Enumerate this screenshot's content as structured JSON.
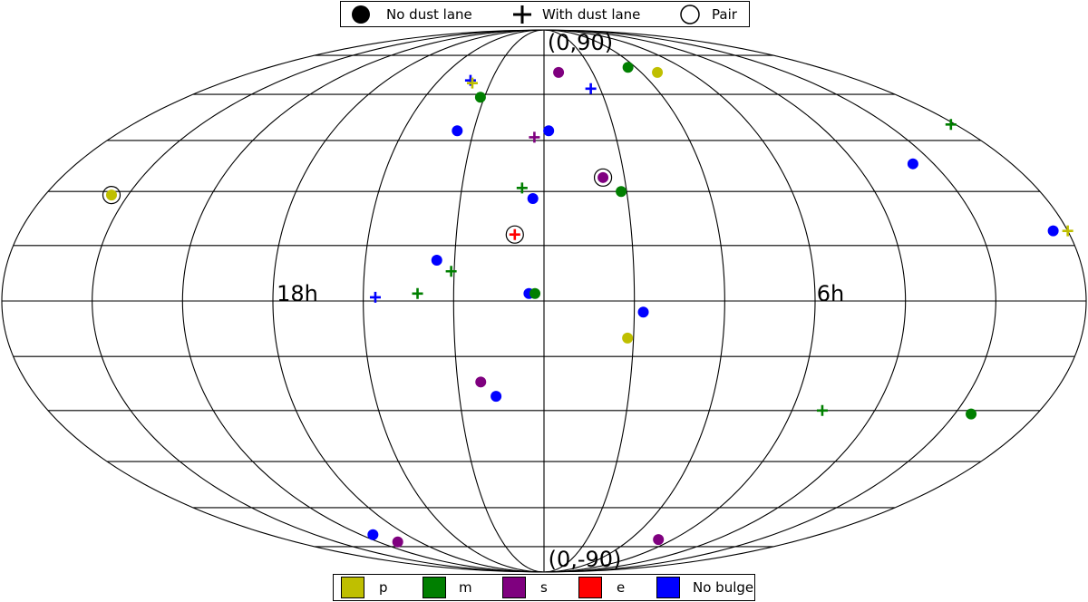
{
  "chart_data": {
    "type": "scatter",
    "projection": "mollweide",
    "graticule": {
      "ra_step_hours": 2,
      "dec_lines_deg": [
        -75,
        -60,
        -45,
        -30,
        -15,
        0,
        15,
        30,
        45,
        60,
        75
      ]
    },
    "labels": {
      "top": "(0,90)",
      "bottom": "(0,-90)",
      "left_equator": "18h",
      "right_equator": "6h"
    },
    "marker_legend": [
      {
        "symbol": "filled-circle",
        "label": "No dust lane"
      },
      {
        "symbol": "plus",
        "label": "With dust lane"
      },
      {
        "symbol": "open-circle",
        "label": "Pair"
      }
    ],
    "color_legend": [
      {
        "key": "p",
        "label": "p",
        "color": "#bfbf00"
      },
      {
        "key": "m",
        "label": "m",
        "color": "#007f00"
      },
      {
        "key": "s",
        "label": "s",
        "color": "#7f007f"
      },
      {
        "key": "e",
        "label": "e",
        "color": "#ff0000"
      },
      {
        "key": "nb",
        "label": "No bulge",
        "color": "#0000ff"
      }
    ],
    "points_note": "lon in degrees east of centre meridian (negative = left), lat in degrees",
    "points": [
      {
        "lon": -42,
        "lat": 65,
        "cls": "nb",
        "marker": "plus"
      },
      {
        "lon": -40,
        "lat": 64,
        "cls": "p",
        "marker": "plus"
      },
      {
        "lon": -32,
        "lat": 59,
        "cls": "m",
        "marker": "circle"
      },
      {
        "lon": 9,
        "lat": 68,
        "cls": "s",
        "marker": "circle"
      },
      {
        "lon": 55,
        "lat": 70,
        "cls": "m",
        "marker": "circle"
      },
      {
        "lon": 70,
        "lat": 68,
        "cls": "p",
        "marker": "circle"
      },
      {
        "lon": 25,
        "lat": 62,
        "cls": "nb",
        "marker": "plus"
      },
      {
        "lon": -37,
        "lat": 48,
        "cls": "nb",
        "marker": "circle"
      },
      {
        "lon": -4,
        "lat": 46,
        "cls": "s",
        "marker": "plus"
      },
      {
        "lon": 2,
        "lat": 48,
        "cls": "nb",
        "marker": "circle"
      },
      {
        "lon": 178,
        "lat": 50,
        "cls": "m",
        "marker": "plus"
      },
      {
        "lon": 142,
        "lat": 38,
        "cls": "nb",
        "marker": "circle"
      },
      {
        "lon": 22,
        "lat": 34,
        "cls": "s",
        "marker": "circle",
        "pair": true
      },
      {
        "lon": 28,
        "lat": 30,
        "cls": "m",
        "marker": "circle"
      },
      {
        "lon": -8,
        "lat": 31,
        "cls": "m",
        "marker": "plus"
      },
      {
        "lon": -4,
        "lat": 28,
        "cls": "nb",
        "marker": "circle"
      },
      {
        "lon": -156,
        "lat": 29,
        "cls": "p",
        "marker": "circle",
        "pair": true
      },
      {
        "lon": -10,
        "lat": 18,
        "cls": "e",
        "marker": "plus",
        "pair": true
      },
      {
        "lon": 175,
        "lat": 19,
        "cls": "nb",
        "marker": "circle"
      },
      {
        "lon": 180,
        "lat": 19,
        "cls": "p",
        "marker": "plus"
      },
      {
        "lon": -36,
        "lat": 11,
        "cls": "nb",
        "marker": "circle"
      },
      {
        "lon": -31,
        "lat": 8,
        "cls": "m",
        "marker": "plus"
      },
      {
        "lon": -42,
        "lat": 2,
        "cls": "m",
        "marker": "plus"
      },
      {
        "lon": -56,
        "lat": 1,
        "cls": "nb",
        "marker": "plus"
      },
      {
        "lon": -5,
        "lat": 2,
        "cls": "nb",
        "marker": "circle"
      },
      {
        "lon": -3,
        "lat": 2,
        "cls": "m",
        "marker": "circle"
      },
      {
        "lon": 33,
        "lat": -3,
        "cls": "nb",
        "marker": "circle"
      },
      {
        "lon": 28,
        "lat": -10,
        "cls": "p",
        "marker": "circle"
      },
      {
        "lon": -22,
        "lat": -22,
        "cls": "s",
        "marker": "circle"
      },
      {
        "lon": -17,
        "lat": -26,
        "cls": "nb",
        "marker": "circle"
      },
      {
        "lon": 101,
        "lat": -30,
        "cls": "m",
        "marker": "plus"
      },
      {
        "lon": 156,
        "lat": -31,
        "cls": "m",
        "marker": "circle"
      },
      {
        "lon": -112,
        "lat": -70,
        "cls": "nb",
        "marker": "circle"
      },
      {
        "lon": -106,
        "lat": -73,
        "cls": "s",
        "marker": "circle"
      },
      {
        "lon": 80,
        "lat": -72,
        "cls": "s",
        "marker": "circle"
      }
    ]
  }
}
